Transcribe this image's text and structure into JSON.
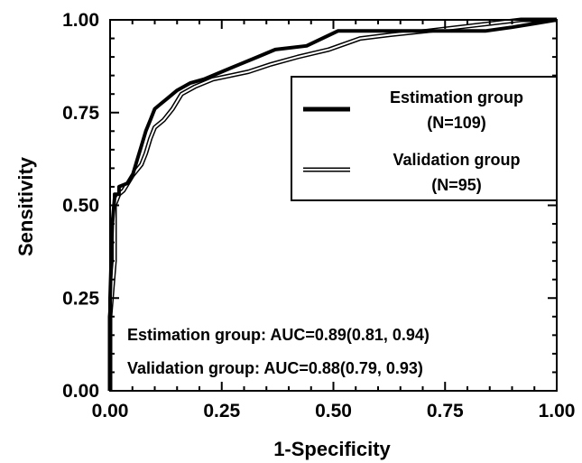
{
  "chart_data": {
    "type": "line",
    "title": "",
    "xlabel": "1-Specificity",
    "ylabel": "Sensitivity",
    "xlim": [
      0,
      1
    ],
    "ylim": [
      0,
      1
    ],
    "xticks": [
      "0.00",
      "0.25",
      "0.50",
      "0.75",
      "1.00"
    ],
    "yticks": [
      "0.00",
      "0.25",
      "0.50",
      "0.75",
      "1.00"
    ],
    "grid": false,
    "legend_position": "top-right",
    "series": [
      {
        "name": "Estimation group",
        "legend_line2": "(N=109)",
        "style": "solid",
        "color": "#000000",
        "x": [
          0,
          0,
          0.005,
          0.01,
          0.01,
          0.02,
          0.02,
          0.04,
          0.05,
          0.06,
          0.07,
          0.08,
          0.09,
          0.1,
          0.11,
          0.13,
          0.15,
          0.18,
          0.21,
          0.25,
          0.29,
          0.33,
          0.37,
          0.44,
          0.51,
          0.59,
          0.68,
          0.76,
          0.84,
          0.9,
          0.95,
          1.0
        ],
        "y": [
          0,
          0.25,
          0.45,
          0.52,
          0.53,
          0.53,
          0.55,
          0.56,
          0.58,
          0.62,
          0.66,
          0.7,
          0.73,
          0.76,
          0.77,
          0.79,
          0.81,
          0.83,
          0.84,
          0.86,
          0.88,
          0.9,
          0.92,
          0.93,
          0.97,
          0.97,
          0.97,
          0.97,
          0.97,
          0.98,
          0.99,
          1.0
        ]
      },
      {
        "name": "Validation group",
        "legend_line2": "(N=95)",
        "style": "double",
        "color": "#000000",
        "x": [
          0,
          0,
          0.01,
          0.01,
          0.02,
          0.03,
          0.04,
          0.05,
          0.07,
          0.08,
          0.09,
          0.1,
          0.12,
          0.14,
          0.16,
          0.19,
          0.23,
          0.27,
          0.31,
          0.36,
          0.42,
          0.49,
          0.56,
          0.63,
          0.71,
          0.78,
          0.85,
          0.92,
          0.97,
          1.0
        ],
        "y": [
          0,
          0.2,
          0.35,
          0.5,
          0.53,
          0.54,
          0.56,
          0.58,
          0.61,
          0.64,
          0.68,
          0.71,
          0.73,
          0.76,
          0.8,
          0.82,
          0.84,
          0.85,
          0.86,
          0.88,
          0.9,
          0.92,
          0.95,
          0.96,
          0.97,
          0.98,
          0.99,
          1.0,
          1.0,
          1.0
        ]
      }
    ],
    "annotations": [
      "Estimation group: AUC=0.89(0.81, 0.94)",
      "Validation group: AUC=0.88(0.79, 0.93)"
    ]
  }
}
